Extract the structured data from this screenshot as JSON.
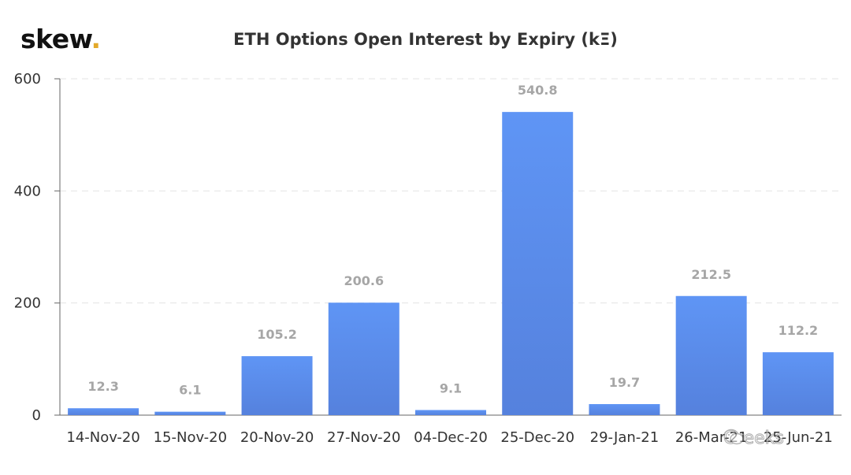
{
  "logo": {
    "text": "skew",
    "dot": ".",
    "dot_color": "#e3a92a"
  },
  "chart_data": {
    "type": "bar",
    "title": "ETH Options Open Interest by Expiry (kΞ)",
    "categories": [
      "14-Nov-20",
      "15-Nov-20",
      "20-Nov-20",
      "27-Nov-20",
      "04-Dec-20",
      "25-Dec-20",
      "29-Jan-21",
      "26-Mar-21",
      "25-Jun-21"
    ],
    "values": [
      12.3,
      6.1,
      105.2,
      200.6,
      9.1,
      540.8,
      19.7,
      212.5,
      112.2
    ],
    "data_labels": [
      "12.3",
      "6.1",
      "105.2",
      "200.6",
      "9.1",
      "540.8",
      "19.7",
      "212.5",
      "112.2"
    ],
    "y_ticks": [
      0,
      200,
      400,
      600
    ],
    "ylim": [
      0,
      600
    ],
    "xlabel": "",
    "ylabel": "",
    "grid": true,
    "bar_color": "#5b8ef0"
  },
  "watermark": {
    "text": "Greeks"
  }
}
